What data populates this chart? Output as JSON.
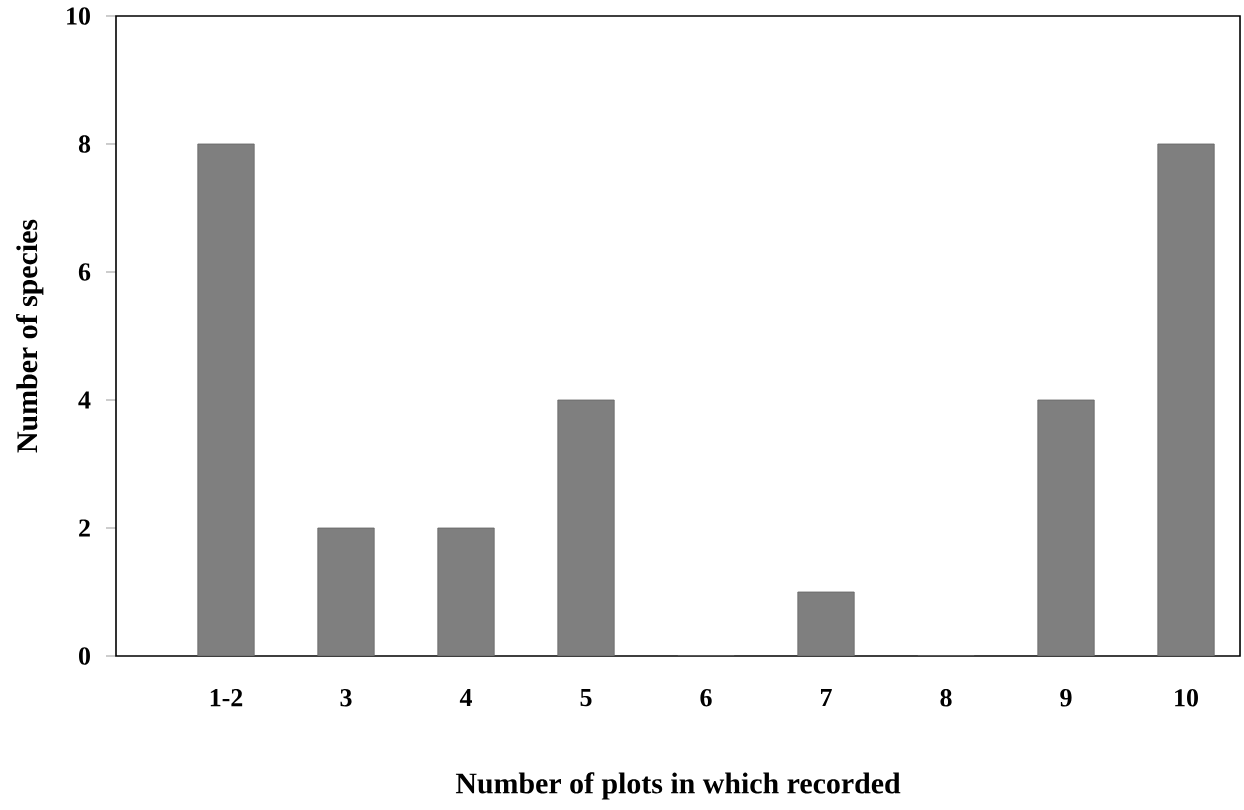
{
  "chart_data": {
    "type": "bar",
    "xlabel": "Number of plots in which recorded",
    "ylabel": "Number of species",
    "categories": [
      "1-2",
      "3",
      "4",
      "5",
      "6",
      "7",
      "8",
      "9",
      "10"
    ],
    "values": [
      8,
      2,
      2,
      4,
      0,
      1,
      0,
      4,
      8
    ],
    "color": "#7f7f7f",
    "ylim": [
      0,
      10
    ],
    "yticks": [
      0,
      2,
      4,
      6,
      8,
      10
    ]
  }
}
